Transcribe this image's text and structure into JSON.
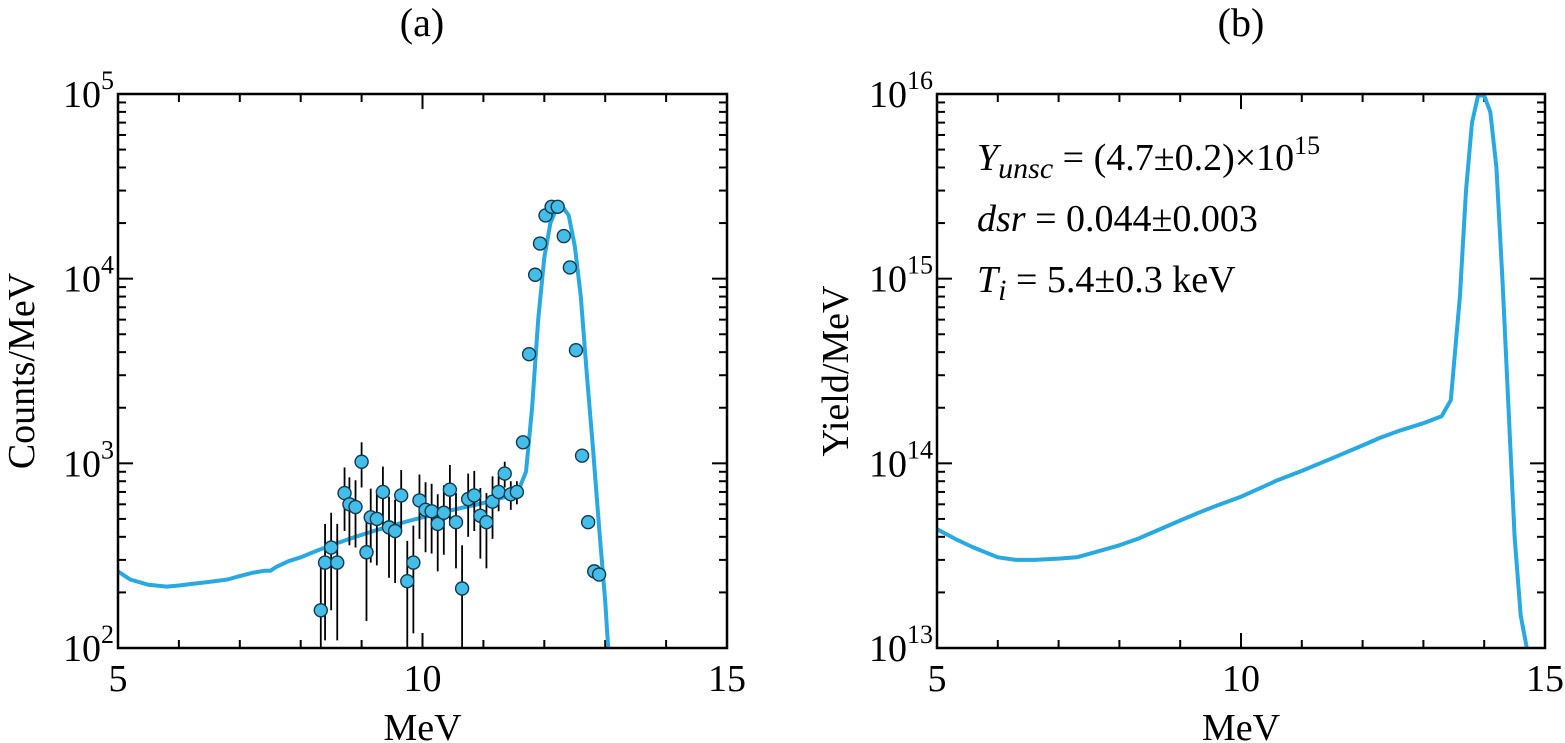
{
  "chart_data": [
    {
      "type": "scatter",
      "panel_label": "(a)",
      "xlabel": "MeV",
      "ylabel": "Counts/MeV",
      "xlim": [
        5,
        15
      ],
      "ylim": [
        100,
        100000
      ],
      "y_scale": "log",
      "x_ticks": [
        5,
        10,
        15
      ],
      "y_ticks": [
        {
          "value": 100,
          "base": "10",
          "exp": "2"
        },
        {
          "value": 1000,
          "base": "10",
          "exp": "3"
        },
        {
          "value": 10000,
          "base": "10",
          "exp": "4"
        },
        {
          "value": 100000,
          "base": "10",
          "exp": "5"
        }
      ],
      "colors": {
        "series": "#29a9e1",
        "marker": "#45bde9",
        "errorbar": "#000000"
      },
      "series": [
        {
          "kind": "line",
          "x": [
            5.0,
            5.2,
            5.5,
            5.8,
            6.0,
            6.2,
            6.5,
            6.8,
            7.0,
            7.2,
            7.4,
            7.5,
            7.6,
            7.8,
            8.0,
            8.3,
            8.6,
            8.9,
            9.2,
            9.5,
            9.8,
            10.1,
            10.4,
            10.7,
            11.0,
            11.2,
            11.4,
            11.55,
            11.7,
            11.8,
            11.9,
            12.0,
            12.1,
            12.2,
            12.3,
            12.4,
            12.5,
            12.6,
            12.7,
            12.8,
            12.9,
            13.0,
            13.05
          ],
          "y": [
            260,
            235,
            220,
            215,
            218,
            222,
            228,
            235,
            245,
            255,
            262,
            262,
            275,
            295,
            310,
            340,
            370,
            400,
            430,
            460,
            490,
            520,
            550,
            580,
            610,
            640,
            660,
            680,
            900,
            2000,
            6000,
            13000,
            20000,
            24000,
            24500,
            22000,
            15000,
            8000,
            3000,
            1200,
            450,
            180,
            100
          ]
        },
        {
          "kind": "points",
          "x": [
            8.33,
            8.4,
            8.5,
            8.6,
            8.72,
            8.8,
            8.9,
            9.0,
            9.08,
            9.15,
            9.25,
            9.35,
            9.45,
            9.55,
            9.65,
            9.75,
            9.85,
            9.95,
            10.05,
            10.15,
            10.25,
            10.35,
            10.45,
            10.55,
            10.65,
            10.75,
            10.85,
            10.95,
            11.05,
            11.15,
            11.25,
            11.35,
            11.45,
            11.55,
            11.65,
            11.75,
            11.85,
            11.93,
            12.02,
            12.12,
            12.22,
            12.32,
            12.42,
            12.52,
            12.62,
            12.72,
            12.82,
            12.9
          ],
          "y": [
            160,
            290,
            350,
            290,
            690,
            600,
            580,
            1020,
            330,
            510,
            500,
            700,
            450,
            430,
            670,
            230,
            290,
            630,
            560,
            550,
            470,
            540,
            720,
            480,
            210,
            640,
            670,
            520,
            480,
            620,
            700,
            880,
            680,
            700,
            1300,
            3900,
            10500,
            15500,
            22000,
            24500,
            24500,
            17000,
            11500,
            4100,
            1100,
            480,
            260,
            250
          ],
          "yerr": [
            150,
            180,
            190,
            180,
            260,
            240,
            230,
            280,
            190,
            220,
            220,
            260,
            210,
            205,
            250,
            150,
            170,
            240,
            230,
            225,
            210,
            220,
            260,
            210,
            150,
            240,
            240,
            215,
            210,
            230,
            150,
            140,
            120,
            100,
            0,
            0,
            0,
            0,
            0,
            0,
            0,
            0,
            0,
            0,
            0,
            0,
            0,
            0
          ]
        }
      ]
    },
    {
      "type": "line",
      "panel_label": "(b)",
      "xlabel": "MeV",
      "ylabel": "Yield/MeV",
      "xlim": [
        5,
        15
      ],
      "ylim": [
        10000000000000.0,
        1e+16
      ],
      "y_scale": "log",
      "x_ticks": [
        5,
        10,
        15
      ],
      "y_ticks": [
        {
          "value": 10000000000000.0,
          "base": "10",
          "exp": "13"
        },
        {
          "value": 100000000000000.0,
          "base": "10",
          "exp": "14"
        },
        {
          "value": 1000000000000000.0,
          "base": "10",
          "exp": "15"
        },
        {
          "value": 1e+16,
          "base": "10",
          "exp": "16"
        }
      ],
      "colors": {
        "series": "#29a9e1"
      },
      "annotations": [
        {
          "pre": "",
          "sym": "Y",
          "sub": "unsc",
          "post": " = (4.7±0.2)×10",
          "sup": "15"
        },
        {
          "pre": "",
          "sym": "dsr",
          "sub": "",
          "post": " = 0.044±0.003",
          "sup": ""
        },
        {
          "pre": "",
          "sym": "T",
          "sub": "i",
          "post": " = 5.4±0.3 keV",
          "sup": ""
        }
      ],
      "series": [
        {
          "kind": "line",
          "x": [
            5.0,
            5.3,
            5.6,
            6.0,
            6.3,
            6.6,
            7.0,
            7.3,
            7.6,
            8.0,
            8.3,
            8.6,
            9.0,
            9.3,
            9.6,
            10.0,
            10.3,
            10.6,
            11.0,
            11.3,
            11.6,
            12.0,
            12.3,
            12.6,
            13.0,
            13.3,
            13.45,
            13.6,
            13.7,
            13.8,
            13.9,
            14.0,
            14.1,
            14.2,
            14.3,
            14.4,
            14.5,
            14.6,
            14.7
          ],
          "y": [
            44000000000000.0,
            39000000000000.0,
            35000000000000.0,
            31000000000000.0,
            30000000000000.0,
            30000000000000.0,
            30500000000000.0,
            31000000000000.0,
            33000000000000.0,
            36000000000000.0,
            39000000000000.0,
            43000000000000.0,
            49000000000000.0,
            54000000000000.0,
            59000000000000.0,
            66000000000000.0,
            73000000000000.0,
            81000000000000.0,
            91000000000000.0,
            100000000000000.0,
            110000000000000.0,
            125000000000000.0,
            138000000000000.0,
            150000000000000.0,
            165000000000000.0,
            180000000000000.0,
            220000000000000.0,
            800000000000000.0,
            3000000000000000.0,
            7000000000000000.0,
            9800000000000000.0,
            9800000000000000.0,
            8000000000000000.0,
            4000000000000000.0,
            1000000000000000.0,
            200000000000000.0,
            40000000000000.0,
            15000000000000.0,
            10000000000000.0
          ]
        }
      ]
    }
  ]
}
